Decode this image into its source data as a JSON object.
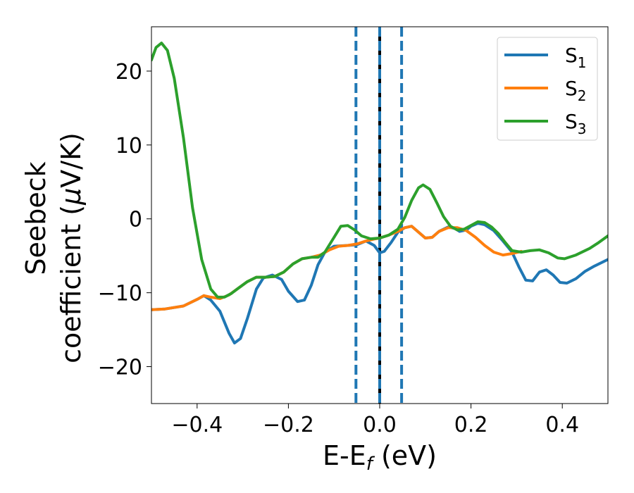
{
  "chart_data": {
    "type": "line",
    "xlabel": "E-E",
    "xlabel_sub": "f",
    "xlabel_unit": " (eV)",
    "ylabel_line1": "Seebeck",
    "ylabel_line2_pre": "coefficient  (",
    "ylabel_mu": "μ",
    "ylabel_line2_post": "V/K)",
    "xlim": [
      -0.5,
      0.5
    ],
    "ylim": [
      -25,
      26
    ],
    "xticks": [
      -0.4,
      -0.2,
      0.0,
      0.2,
      0.4
    ],
    "xtick_labels": [
      "−0.4",
      "−0.2",
      "0.0",
      "0.2",
      "0.4"
    ],
    "yticks": [
      -20,
      -10,
      0,
      10,
      20
    ],
    "ytick_labels": [
      "−20",
      "−10",
      "0",
      "10",
      "20"
    ],
    "grid": false,
    "legend_position": "top-right",
    "vlines": [
      {
        "x": -0.052,
        "style": "dashed",
        "color": "#1f77b4"
      },
      {
        "x": 0.0,
        "style": "solid",
        "color": "#000000"
      },
      {
        "x": 0.0,
        "style": "dashed",
        "color": "#1f77b4"
      },
      {
        "x": 0.048,
        "style": "dashed",
        "color": "#1f77b4"
      }
    ],
    "series": [
      {
        "name": "S",
        "sub": "1",
        "color": "#1f77b4",
        "points": [
          [
            -0.5,
            -12.3
          ],
          [
            -0.47,
            -12.2
          ],
          [
            -0.43,
            -11.8
          ],
          [
            -0.4,
            -10.9
          ],
          [
            -0.385,
            -10.4
          ],
          [
            -0.37,
            -11
          ],
          [
            -0.35,
            -12.5
          ],
          [
            -0.33,
            -15.5
          ],
          [
            -0.318,
            -16.8
          ],
          [
            -0.305,
            -16.2
          ],
          [
            -0.29,
            -13.5
          ],
          [
            -0.27,
            -9.5
          ],
          [
            -0.255,
            -8
          ],
          [
            -0.235,
            -7.6
          ],
          [
            -0.215,
            -8.2
          ],
          [
            -0.2,
            -9.8
          ],
          [
            -0.18,
            -11.2
          ],
          [
            -0.165,
            -11
          ],
          [
            -0.15,
            -9
          ],
          [
            -0.135,
            -6.2
          ],
          [
            -0.12,
            -4.5
          ],
          [
            -0.1,
            -3.7
          ],
          [
            -0.07,
            -3.6
          ],
          [
            -0.05,
            -3.5
          ],
          [
            -0.03,
            -3
          ],
          [
            -0.012,
            -3.6
          ],
          [
            0.0,
            -4.6
          ],
          [
            0.01,
            -4.4
          ],
          [
            0.025,
            -3.2
          ],
          [
            0.04,
            -1.8
          ],
          [
            0.055,
            -1.2
          ],
          [
            0.07,
            -1.0
          ],
          [
            0.085,
            -1.8
          ],
          [
            0.1,
            -2.6
          ],
          [
            0.115,
            -2.5
          ],
          [
            0.13,
            -1.7
          ],
          [
            0.15,
            -1.1
          ],
          [
            0.165,
            -1.3
          ],
          [
            0.175,
            -1.7
          ],
          [
            0.19,
            -1.5
          ],
          [
            0.2,
            -1.0
          ],
          [
            0.215,
            -0.6
          ],
          [
            0.23,
            -0.8
          ],
          [
            0.25,
            -1.6
          ],
          [
            0.27,
            -3
          ],
          [
            0.29,
            -4.5
          ],
          [
            0.305,
            -6.5
          ],
          [
            0.32,
            -8.3
          ],
          [
            0.335,
            -8.4
          ],
          [
            0.35,
            -7.2
          ],
          [
            0.365,
            -6.9
          ],
          [
            0.38,
            -7.6
          ],
          [
            0.395,
            -8.6
          ],
          [
            0.41,
            -8.7
          ],
          [
            0.43,
            -8.1
          ],
          [
            0.45,
            -7.1
          ],
          [
            0.47,
            -6.4
          ],
          [
            0.5,
            -5.5
          ]
        ]
      },
      {
        "name": "S",
        "sub": "2",
        "color": "#ff7f0e",
        "points": [
          [
            -0.5,
            -12.3
          ],
          [
            -0.47,
            -12.2
          ],
          [
            -0.43,
            -11.8
          ],
          [
            -0.4,
            -10.9
          ],
          [
            -0.385,
            -10.4
          ],
          [
            -0.37,
            -10.6
          ],
          [
            -0.35,
            -10.8
          ],
          [
            -0.33,
            -10.3
          ],
          [
            -0.31,
            -9.4
          ],
          [
            -0.29,
            -8.5
          ],
          [
            -0.27,
            -7.9
          ],
          [
            -0.25,
            -7.9
          ],
          [
            -0.23,
            -7.8
          ],
          [
            -0.21,
            -7.2
          ],
          [
            -0.19,
            -6.1
          ],
          [
            -0.17,
            -5.4
          ],
          [
            -0.15,
            -5.2
          ],
          [
            -0.13,
            -4.9
          ],
          [
            -0.11,
            -4.2
          ],
          [
            -0.09,
            -3.7
          ],
          [
            -0.07,
            -3.6
          ],
          [
            -0.05,
            -3.4
          ],
          [
            -0.03,
            -3.0
          ],
          [
            -0.01,
            -2.7
          ],
          [
            0.0,
            -2.6
          ],
          [
            0.02,
            -2.2
          ],
          [
            0.04,
            -1.7
          ],
          [
            0.055,
            -1.2
          ],
          [
            0.07,
            -1.0
          ],
          [
            0.085,
            -1.8
          ],
          [
            0.1,
            -2.6
          ],
          [
            0.115,
            -2.5
          ],
          [
            0.13,
            -1.7
          ],
          [
            0.15,
            -1.2
          ],
          [
            0.17,
            -1.2
          ],
          [
            0.19,
            -1.6
          ],
          [
            0.21,
            -2.5
          ],
          [
            0.23,
            -3.6
          ],
          [
            0.25,
            -4.5
          ],
          [
            0.27,
            -4.9
          ],
          [
            0.29,
            -4.7
          ],
          [
            0.31,
            -4.4
          ]
        ]
      },
      {
        "name": "S",
        "sub": "3",
        "color": "#2ca02c",
        "points": [
          [
            -0.5,
            21.5
          ],
          [
            -0.49,
            23.2
          ],
          [
            -0.478,
            23.8
          ],
          [
            -0.465,
            22.8
          ],
          [
            -0.45,
            19
          ],
          [
            -0.43,
            11
          ],
          [
            -0.41,
            1.5
          ],
          [
            -0.39,
            -5.5
          ],
          [
            -0.37,
            -9.5
          ],
          [
            -0.355,
            -10.6
          ],
          [
            -0.34,
            -10.6
          ],
          [
            -0.325,
            -10.1
          ],
          [
            -0.31,
            -9.4
          ],
          [
            -0.29,
            -8.5
          ],
          [
            -0.27,
            -7.9
          ],
          [
            -0.25,
            -7.9
          ],
          [
            -0.23,
            -7.8
          ],
          [
            -0.21,
            -7.2
          ],
          [
            -0.19,
            -6.1
          ],
          [
            -0.17,
            -5.4
          ],
          [
            -0.15,
            -5.2
          ],
          [
            -0.135,
            -5.2
          ],
          [
            -0.12,
            -4.5
          ],
          [
            -0.1,
            -2.5
          ],
          [
            -0.085,
            -1.0
          ],
          [
            -0.07,
            -0.9
          ],
          [
            -0.055,
            -1.5
          ],
          [
            -0.04,
            -2.3
          ],
          [
            -0.02,
            -2.7
          ],
          [
            0.0,
            -2.6
          ],
          [
            0.02,
            -2.2
          ],
          [
            0.04,
            -1.4
          ],
          [
            0.055,
            0.2
          ],
          [
            0.07,
            2.5
          ],
          [
            0.085,
            4.2
          ],
          [
            0.095,
            4.6
          ],
          [
            0.11,
            4.0
          ],
          [
            0.125,
            2.2
          ],
          [
            0.14,
            0.3
          ],
          [
            0.155,
            -1.0
          ],
          [
            0.17,
            -1.5
          ],
          [
            0.185,
            -1.4
          ],
          [
            0.2,
            -0.9
          ],
          [
            0.215,
            -0.4
          ],
          [
            0.23,
            -0.5
          ],
          [
            0.245,
            -1.1
          ],
          [
            0.26,
            -2.0
          ],
          [
            0.275,
            -3.2
          ],
          [
            0.29,
            -4.3
          ],
          [
            0.31,
            -4.5
          ],
          [
            0.33,
            -4.3
          ],
          [
            0.35,
            -4.2
          ],
          [
            0.37,
            -4.6
          ],
          [
            0.39,
            -5.3
          ],
          [
            0.405,
            -5.4
          ],
          [
            0.43,
            -4.9
          ],
          [
            0.46,
            -4.0
          ],
          [
            0.48,
            -3.2
          ],
          [
            0.5,
            -2.3
          ]
        ]
      }
    ]
  }
}
